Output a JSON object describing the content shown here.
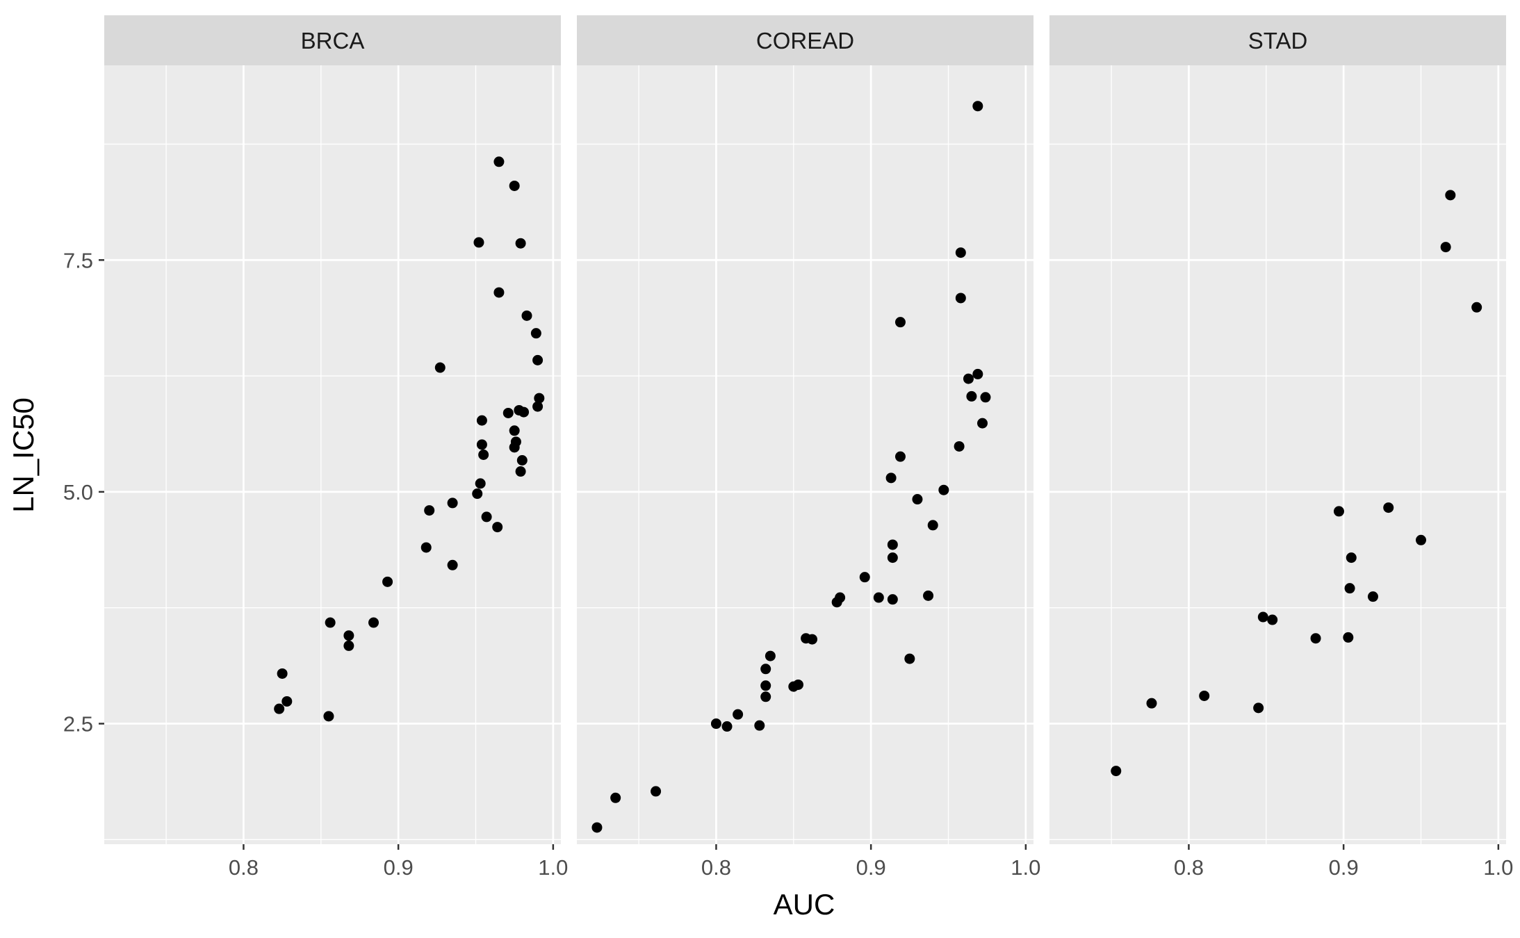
{
  "chart_data": {
    "type": "scatter",
    "xlabel": "AUC",
    "ylabel": "LN_IC50",
    "xlim": [
      0.71,
      1.005
    ],
    "ylim": [
      1.2,
      9.6
    ],
    "x_ticks": [
      0.8,
      0.9,
      1.0
    ],
    "x_tick_labels": [
      "0.8",
      "0.9",
      "1.0"
    ],
    "y_ticks": [
      2.5,
      5.0,
      7.5
    ],
    "y_tick_labels": [
      "2.5",
      "5.0",
      "7.5"
    ],
    "grid": true,
    "colors": {
      "panel_bg": "#ebebeb",
      "strip_bg": "#d9d9d9",
      "grid": "#ffffff",
      "point": "#000000"
    },
    "panels": [
      {
        "name": "BRCA",
        "points": [
          [
            0.823,
            2.66
          ],
          [
            0.825,
            3.04
          ],
          [
            0.828,
            2.74
          ],
          [
            0.856,
            3.59
          ],
          [
            0.855,
            2.58
          ],
          [
            0.868,
            3.45
          ],
          [
            0.868,
            3.34
          ],
          [
            0.884,
            3.59
          ],
          [
            0.893,
            4.03
          ],
          [
            0.92,
            4.8
          ],
          [
            0.918,
            4.4
          ],
          [
            0.935,
            4.21
          ],
          [
            0.935,
            4.88
          ],
          [
            0.927,
            6.34
          ],
          [
            0.951,
            4.98
          ],
          [
            0.953,
            5.09
          ],
          [
            0.954,
            5.51
          ],
          [
            0.954,
            5.77
          ],
          [
            0.955,
            5.4
          ],
          [
            0.957,
            4.73
          ],
          [
            0.952,
            7.69
          ],
          [
            0.964,
            4.62
          ],
          [
            0.965,
            8.56
          ],
          [
            0.965,
            7.15
          ],
          [
            0.971,
            5.85
          ],
          [
            0.975,
            5.66
          ],
          [
            0.975,
            5.48
          ],
          [
            0.976,
            5.54
          ],
          [
            0.975,
            8.3
          ],
          [
            0.978,
            5.88
          ],
          [
            0.979,
            7.68
          ],
          [
            0.979,
            5.22
          ],
          [
            0.98,
            5.34
          ],
          [
            0.981,
            5.86
          ],
          [
            0.983,
            6.9
          ],
          [
            0.989,
            6.71
          ],
          [
            0.99,
            6.42
          ],
          [
            0.99,
            5.92
          ],
          [
            0.991,
            6.01
          ]
        ]
      },
      {
        "name": "COREAD",
        "points": [
          [
            0.723,
            1.38
          ],
          [
            0.735,
            1.7
          ],
          [
            0.761,
            1.77
          ],
          [
            0.8,
            2.5
          ],
          [
            0.807,
            2.47
          ],
          [
            0.814,
            2.6
          ],
          [
            0.828,
            2.48
          ],
          [
            0.832,
            3.09
          ],
          [
            0.832,
            2.91
          ],
          [
            0.832,
            2.79
          ],
          [
            0.835,
            3.23
          ],
          [
            0.85,
            2.9
          ],
          [
            0.853,
            2.92
          ],
          [
            0.858,
            3.42
          ],
          [
            0.862,
            3.41
          ],
          [
            0.878,
            3.81
          ],
          [
            0.88,
            3.86
          ],
          [
            0.896,
            4.08
          ],
          [
            0.905,
            3.86
          ],
          [
            0.913,
            5.15
          ],
          [
            0.914,
            4.43
          ],
          [
            0.914,
            4.29
          ],
          [
            0.914,
            3.84
          ],
          [
            0.919,
            5.38
          ],
          [
            0.919,
            6.83
          ],
          [
            0.925,
            3.2
          ],
          [
            0.93,
            4.92
          ],
          [
            0.937,
            3.88
          ],
          [
            0.94,
            4.64
          ],
          [
            0.947,
            5.02
          ],
          [
            0.957,
            5.49
          ],
          [
            0.958,
            7.58
          ],
          [
            0.958,
            7.09
          ],
          [
            0.963,
            6.22
          ],
          [
            0.965,
            6.03
          ],
          [
            0.969,
            6.27
          ],
          [
            0.969,
            9.16
          ],
          [
            0.972,
            5.74
          ],
          [
            0.974,
            6.02
          ]
        ]
      },
      {
        "name": "STAD",
        "points": [
          [
            0.753,
            1.99
          ],
          [
            0.776,
            2.72
          ],
          [
            0.81,
            2.8
          ],
          [
            0.845,
            2.67
          ],
          [
            0.848,
            3.65
          ],
          [
            0.854,
            3.62
          ],
          [
            0.882,
            3.42
          ],
          [
            0.897,
            4.79
          ],
          [
            0.903,
            3.43
          ],
          [
            0.904,
            3.96
          ],
          [
            0.905,
            4.29
          ],
          [
            0.919,
            3.87
          ],
          [
            0.929,
            4.83
          ],
          [
            0.95,
            4.48
          ],
          [
            0.966,
            7.64
          ],
          [
            0.969,
            8.2
          ],
          [
            0.986,
            6.99
          ]
        ]
      }
    ]
  }
}
